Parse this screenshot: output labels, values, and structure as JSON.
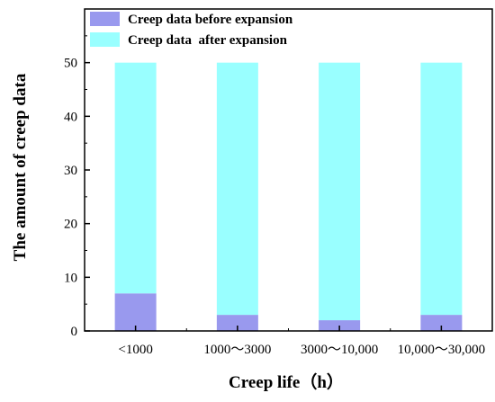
{
  "chart_data": {
    "type": "bar",
    "stacked": true,
    "title": "",
    "xlabel": "Creep life（h）",
    "ylabel": "The amount of creep data",
    "categories": [
      "<1000",
      "1000～3000",
      "3000～10,000",
      "10,000～30,000"
    ],
    "series": [
      {
        "name": "Creep data before expansion",
        "values": [
          7,
          3,
          2,
          3
        ],
        "color": "#9999ee"
      },
      {
        "name": "Creep data  after expansion",
        "values": [
          43,
          47,
          48,
          47
        ],
        "color": "#99ffff"
      }
    ],
    "ylim": [
      0,
      60
    ],
    "yticks": [
      "0",
      "10",
      "20",
      "30",
      "40",
      "50"
    ],
    "legend_position": "top-left",
    "grid": false
  }
}
